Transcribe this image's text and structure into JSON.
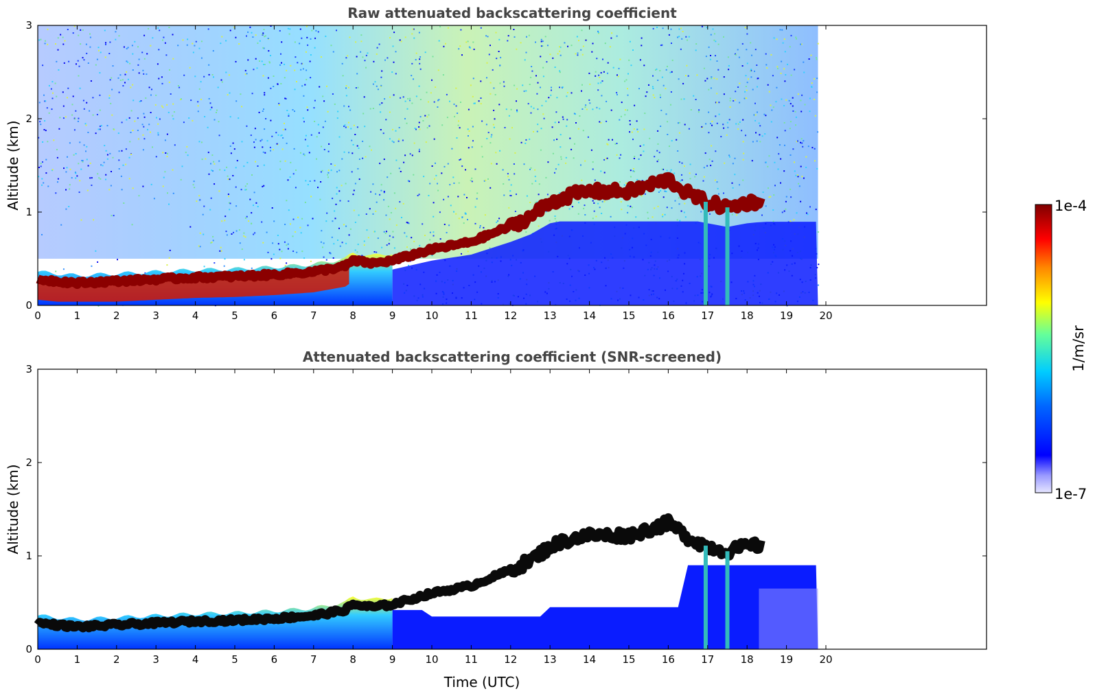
{
  "chart_data": [
    {
      "type": "heatmap",
      "title": "Raw attenuated backscattering coefficient",
      "xlabel": "",
      "ylabel": "Altitude (km)",
      "xlim": [
        0,
        24
      ],
      "ylim": [
        0,
        3
      ],
      "x_ticks": [
        "0",
        "1",
        "2",
        "3",
        "4",
        "5",
        "6",
        "7",
        "8",
        "9",
        "10",
        "11",
        "12",
        "13",
        "14",
        "15",
        "16",
        "17",
        "18",
        "19",
        "20"
      ],
      "y_ticks": [
        "0",
        "1",
        "2",
        "3"
      ],
      "data_end_time": 19.8,
      "layer_top_km": [
        [
          0,
          0.28
        ],
        [
          1,
          0.24
        ],
        [
          2,
          0.26
        ],
        [
          3,
          0.28
        ],
        [
          4,
          0.3
        ],
        [
          5,
          0.31
        ],
        [
          6,
          0.33
        ],
        [
          7,
          0.36
        ],
        [
          7.8,
          0.42
        ],
        [
          8,
          0.48
        ],
        [
          8.5,
          0.45
        ],
        [
          9,
          0.48
        ],
        [
          10,
          0.6
        ],
        [
          11,
          0.68
        ],
        [
          12,
          0.85
        ],
        [
          12.5,
          0.95
        ],
        [
          13,
          1.1
        ],
        [
          13.5,
          1.18
        ],
        [
          14,
          1.22
        ],
        [
          15,
          1.22
        ],
        [
          16,
          1.35
        ],
        [
          16.5,
          1.2
        ],
        [
          17,
          1.1
        ],
        [
          17.5,
          1.05
        ],
        [
          18,
          1.1
        ],
        [
          18.4,
          1.12
        ]
      ],
      "grid": false
    },
    {
      "type": "heatmap",
      "title": "Attenuated backscattering coefficient (SNR-screened)",
      "xlabel": "Time (UTC)",
      "ylabel": "Altitude (km)",
      "xlim": [
        0,
        24
      ],
      "ylim": [
        0,
        3
      ],
      "x_ticks": [
        "0",
        "1",
        "2",
        "3",
        "4",
        "5",
        "6",
        "7",
        "8",
        "9",
        "10",
        "11",
        "12",
        "13",
        "14",
        "15",
        "16",
        "17",
        "18",
        "19",
        "20"
      ],
      "y_ticks": [
        "0",
        "1",
        "2",
        "3"
      ],
      "data_end_time": 19.8,
      "grid": false
    }
  ],
  "colorbar": {
    "label": "1/m/sr",
    "max_label": "1e-4",
    "min_label": "1e-7",
    "scale": "log",
    "range": [
      1e-07,
      0.0001
    ],
    "colormap": "jet",
    "colors": [
      "#e6e6ff",
      "#0000ff",
      "#00c8ff",
      "#7fff7f",
      "#ffff00",
      "#ff7f00",
      "#ff0000",
      "#7f0000"
    ]
  },
  "colors": {
    "layer_raw": "#8b0000",
    "layer_screened": "#0a0a0a",
    "noise_low": "#0000ff",
    "title": "#444444"
  }
}
